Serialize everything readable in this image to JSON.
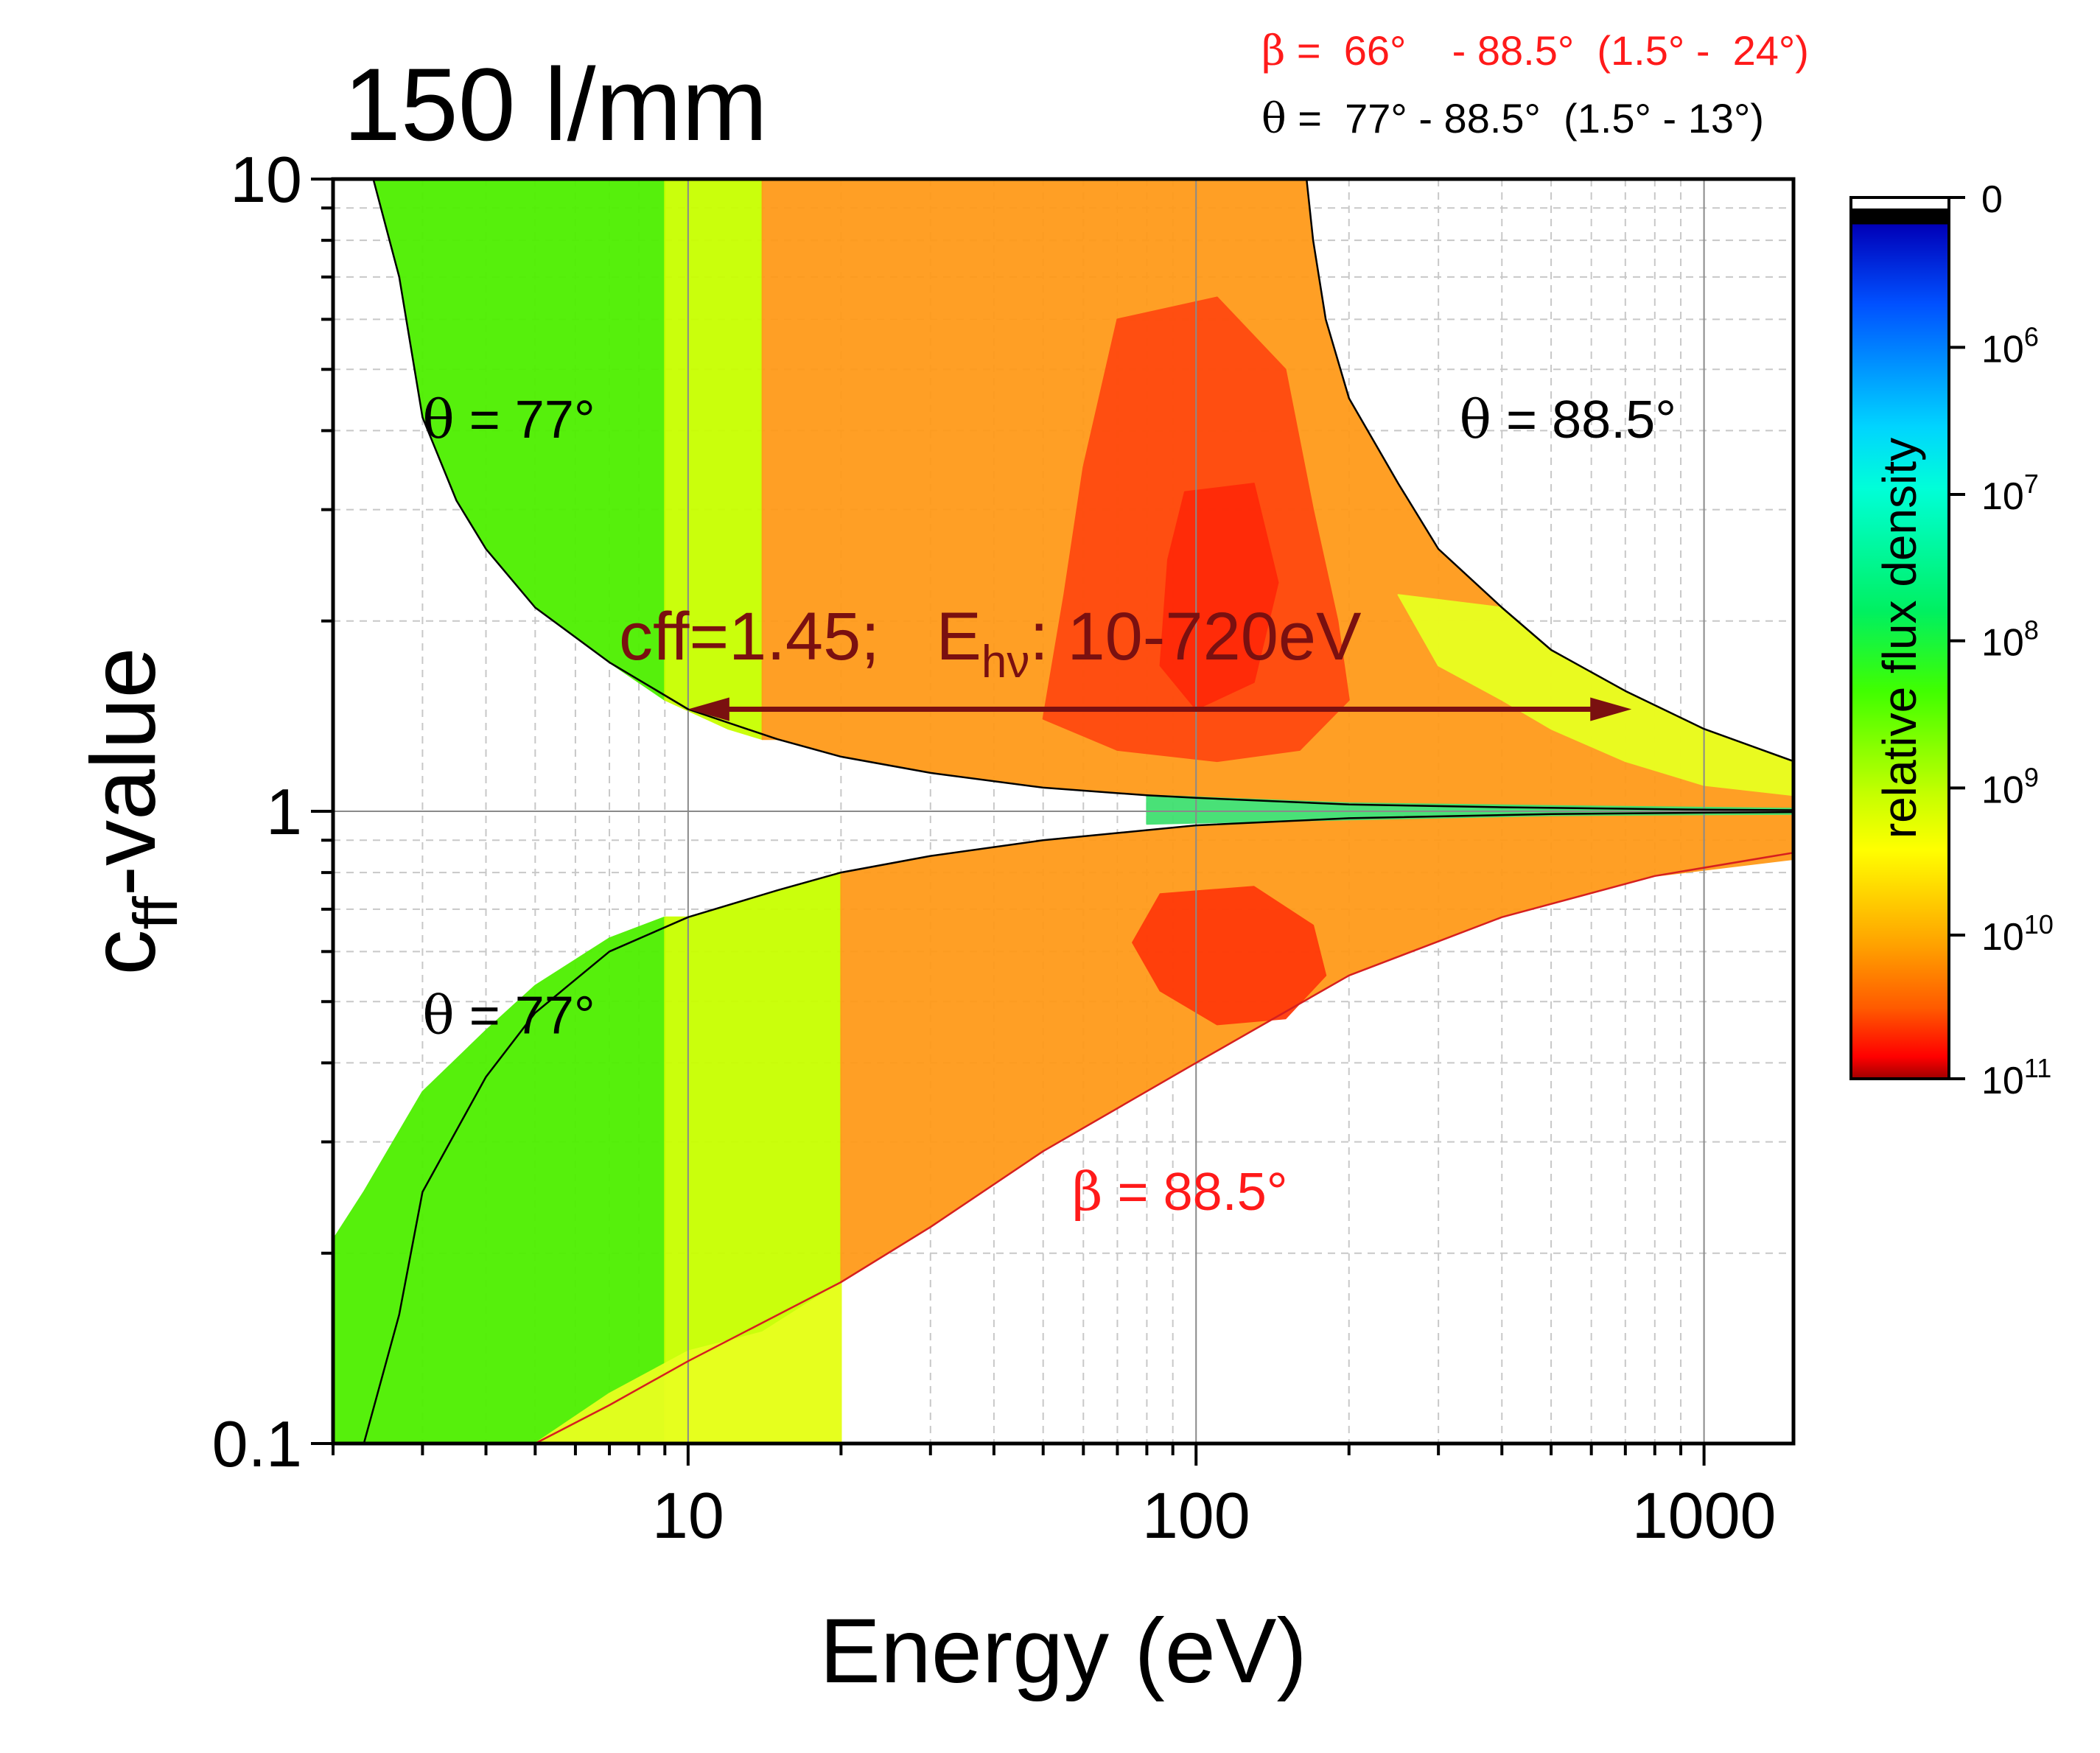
{
  "chart_data": {
    "type": "heatmap",
    "title": "150 l/mm",
    "xlabel": "Energy (eV)",
    "ylabel": {
      "main": "c",
      "sub": "ff",
      "suffix": "-value"
    },
    "x_scale": "log",
    "y_scale": "log",
    "xlim": [
      2,
      1500
    ],
    "ylim": [
      0.1,
      10
    ],
    "x_ticks": [
      10,
      100,
      1000
    ],
    "x_tick_labels": [
      "10",
      "100",
      "1000"
    ],
    "y_ticks": [
      0.1,
      1,
      10
    ],
    "y_tick_labels": [
      "0.1",
      "1",
      "10"
    ],
    "grid": true,
    "legend_text": {
      "beta": {
        "symbol": "β",
        "text": " =  66°    - 88.5°  (1.5° -  24°)",
        "color": "#ff1a1a"
      },
      "theta": {
        "symbol": "θ",
        "text": " =  77° - 88.5°  (1.5° - 13°)",
        "color": "#000000"
      }
    },
    "annotations": [
      {
        "id": "theta77-upper",
        "symbol": "θ",
        "text": " =  77°",
        "at": [
          3.0,
          3.9
        ],
        "color": "#000000"
      },
      {
        "id": "theta885-upper",
        "symbol": "θ",
        "text": " =  88.5°",
        "at": [
          330,
          3.9
        ],
        "color": "#000000"
      },
      {
        "id": "theta77-lower",
        "symbol": "θ",
        "text": " =  77°",
        "at": [
          3.0,
          0.445
        ],
        "color": "#000000"
      },
      {
        "id": "beta885",
        "symbol": "β",
        "text": " =  88.5°",
        "at": [
          57,
          0.234
        ],
        "color": "#ff1a1a"
      }
    ],
    "cff_marker": {
      "text": "cff=1.45;   E",
      "sub": "hν",
      "suffix": ": 10-720eV",
      "cff": 1.45,
      "energy_range": [
        10,
        720
      ],
      "color": "#7a1010"
    },
    "boundaries": [
      {
        "name": "theta-77-upper",
        "color": "#000000",
        "points": [
          [
            2.4,
            10
          ],
          [
            2.7,
            7
          ],
          [
            3,
            4.2
          ],
          [
            3.5,
            3.1
          ],
          [
            4,
            2.6
          ],
          [
            5,
            2.1
          ],
          [
            7,
            1.72
          ],
          [
            10,
            1.45
          ],
          [
            15,
            1.3
          ],
          [
            20,
            1.22
          ],
          [
            30,
            1.15
          ],
          [
            50,
            1.09
          ],
          [
            80,
            1.06
          ],
          [
            100,
            1.05
          ],
          [
            200,
            1.025
          ],
          [
            400,
            1.015
          ],
          [
            1000,
            1.006
          ],
          [
            1500,
            1.004
          ]
        ]
      },
      {
        "name": "theta-88.5-upper",
        "color": "#000000",
        "points": [
          [
            165,
            10
          ],
          [
            170,
            8
          ],
          [
            180,
            6
          ],
          [
            200,
            4.5
          ],
          [
            250,
            3.3
          ],
          [
            300,
            2.6
          ],
          [
            400,
            2.1
          ],
          [
            500,
            1.8
          ],
          [
            700,
            1.55
          ],
          [
            1000,
            1.35
          ],
          [
            1500,
            1.2
          ]
        ]
      },
      {
        "name": "theta-77-lower",
        "color": "#000000",
        "points": [
          [
            2.3,
            0.1
          ],
          [
            2.7,
            0.16
          ],
          [
            3,
            0.25
          ],
          [
            4,
            0.38
          ],
          [
            5,
            0.48
          ],
          [
            7,
            0.6
          ],
          [
            10,
            0.68
          ],
          [
            15,
            0.75
          ],
          [
            20,
            0.8
          ],
          [
            30,
            0.85
          ],
          [
            50,
            0.9
          ],
          [
            100,
            0.95
          ],
          [
            200,
            0.975
          ],
          [
            500,
            0.99
          ],
          [
            1000,
            0.995
          ],
          [
            1500,
            0.997
          ]
        ]
      },
      {
        "name": "beta-88.5-lower",
        "color": "#d61f1f",
        "points": [
          [
            5,
            0.1
          ],
          [
            7,
            0.115
          ],
          [
            10,
            0.135
          ],
          [
            20,
            0.18
          ],
          [
            30,
            0.22
          ],
          [
            50,
            0.29
          ],
          [
            100,
            0.4
          ],
          [
            200,
            0.55
          ],
          [
            400,
            0.68
          ],
          [
            800,
            0.79
          ],
          [
            1500,
            0.86
          ]
        ]
      }
    ],
    "colorbar": {
      "label": "relative flux density",
      "ticks": [
        {
          "value": "0",
          "frac": 0.0
        },
        {
          "value": "10^6",
          "base": "10",
          "exp": "6",
          "frac": 0.17
        },
        {
          "value": "10^7",
          "base": "10",
          "exp": "7",
          "frac": 0.337
        },
        {
          "value": "10^8",
          "base": "10",
          "exp": "8",
          "frac": 0.503
        },
        {
          "value": "10^9",
          "base": "10",
          "exp": "9",
          "frac": 0.67
        },
        {
          "value": "10^10",
          "base": "10",
          "exp": "10",
          "frac": 0.837
        },
        {
          "value": "10^11",
          "base": "10",
          "exp": "11",
          "frac": 1.0
        }
      ],
      "stops": [
        {
          "frac": 0.0,
          "color": "#ffffff"
        },
        {
          "frac": 0.012,
          "color": "#ffffff"
        },
        {
          "frac": 0.013,
          "color": "#000000"
        },
        {
          "frac": 0.03,
          "color": "#000000"
        },
        {
          "frac": 0.031,
          "color": "#0000b8"
        },
        {
          "frac": 0.12,
          "color": "#0050ff"
        },
        {
          "frac": 0.26,
          "color": "#00d4ff"
        },
        {
          "frac": 0.33,
          "color": "#00ffd8"
        },
        {
          "frac": 0.47,
          "color": "#00f060"
        },
        {
          "frac": 0.56,
          "color": "#40ff00"
        },
        {
          "frac": 0.68,
          "color": "#c8ff00"
        },
        {
          "frac": 0.74,
          "color": "#ffff00"
        },
        {
          "frac": 0.85,
          "color": "#ffa000"
        },
        {
          "frac": 0.92,
          "color": "#ff5a00"
        },
        {
          "frac": 0.975,
          "color": "#ff0000"
        },
        {
          "frac": 1.0,
          "color": "#a00000"
        }
      ]
    },
    "flux_regions": [
      {
        "name": "upper-green",
        "color": "#4ef000",
        "points": [
          [
            2,
            10
          ],
          [
            2.4,
            10
          ],
          [
            2.7,
            7
          ],
          [
            3,
            4.2
          ],
          [
            3.5,
            3.1
          ],
          [
            4,
            2.6
          ],
          [
            5,
            2.1
          ],
          [
            7,
            1.72
          ],
          [
            9,
            1.5
          ],
          [
            9,
            10
          ]
        ]
      },
      {
        "name": "upper-yellow",
        "color": "#c8ff00",
        "points": [
          [
            9,
            10
          ],
          [
            9,
            1.5
          ],
          [
            12,
            1.35
          ],
          [
            14,
            1.3
          ],
          [
            14,
            10
          ]
        ]
      },
      {
        "name": "upper-orange",
        "color": "#ff9a1a",
        "points": [
          [
            14,
            10
          ],
          [
            165,
            10
          ],
          [
            170,
            8
          ],
          [
            180,
            6
          ],
          [
            200,
            4.5
          ],
          [
            250,
            3.3
          ],
          [
            300,
            2.6
          ],
          [
            400,
            2.1
          ],
          [
            500,
            1.8
          ],
          [
            700,
            1.55
          ],
          [
            1000,
            1.35
          ],
          [
            1500,
            1.2
          ],
          [
            1500,
            1.004
          ],
          [
            1000,
            1.006
          ],
          [
            400,
            1.015
          ],
          [
            200,
            1.025
          ],
          [
            100,
            1.05
          ],
          [
            80,
            1.06
          ],
          [
            50,
            1.09
          ],
          [
            30,
            1.15
          ],
          [
            20,
            1.22
          ],
          [
            15,
            1.3
          ],
          [
            14,
            1.3
          ]
        ]
      },
      {
        "name": "upper-red-core",
        "color": "#ff4a10",
        "points": [
          [
            70,
            6
          ],
          [
            110,
            6.5
          ],
          [
            150,
            5
          ],
          [
            170,
            3
          ],
          [
            190,
            2
          ],
          [
            200,
            1.5
          ],
          [
            160,
            1.25
          ],
          [
            110,
            1.2
          ],
          [
            70,
            1.25
          ],
          [
            50,
            1.4
          ],
          [
            55,
            2.2
          ],
          [
            60,
            3.5
          ]
        ]
      },
      {
        "name": "upper-hot",
        "color": "#ff2a08",
        "points": [
          [
            95,
            3.2
          ],
          [
            130,
            3.3
          ],
          [
            145,
            2.3
          ],
          [
            130,
            1.6
          ],
          [
            100,
            1.45
          ],
          [
            85,
            1.7
          ],
          [
            88,
            2.5
          ]
        ]
      },
      {
        "name": "upper-edge-yellow",
        "color": "#e8ff20",
        "points": [
          [
            400,
            2.1
          ],
          [
            500,
            1.8
          ],
          [
            700,
            1.55
          ],
          [
            1000,
            1.35
          ],
          [
            1500,
            1.2
          ],
          [
            1500,
            1.06
          ],
          [
            1000,
            1.1
          ],
          [
            700,
            1.2
          ],
          [
            500,
            1.35
          ],
          [
            400,
            1.5
          ],
          [
            300,
            1.7
          ],
          [
            250,
            2.2
          ]
        ]
      },
      {
        "name": "lower-green",
        "color": "#4ef000",
        "points": [
          [
            2,
            0.21
          ],
          [
            2.3,
            0.25
          ],
          [
            3,
            0.36
          ],
          [
            4,
            0.45
          ],
          [
            5,
            0.53
          ],
          [
            7,
            0.63
          ],
          [
            9,
            0.68
          ],
          [
            9,
            0.1
          ],
          [
            2.3,
            0.1
          ],
          [
            2,
            0.1
          ]
        ]
      },
      {
        "name": "lower-yellow",
        "color": "#c8ff00",
        "points": [
          [
            9,
            0.68
          ],
          [
            10,
            0.68
          ],
          [
            15,
            0.75
          ],
          [
            20,
            0.8
          ],
          [
            20,
            0.1
          ],
          [
            9,
            0.1
          ]
        ]
      },
      {
        "name": "lower-orange",
        "color": "#ff9a1a",
        "points": [
          [
            20,
            0.8
          ],
          [
            30,
            0.85
          ],
          [
            50,
            0.9
          ],
          [
            100,
            0.95
          ],
          [
            200,
            0.975
          ],
          [
            500,
            0.99
          ],
          [
            1000,
            0.995
          ],
          [
            1500,
            0.997
          ],
          [
            1500,
            0.84
          ],
          [
            800,
            0.79
          ],
          [
            400,
            0.68
          ],
          [
            200,
            0.55
          ],
          [
            100,
            0.4
          ],
          [
            50,
            0.29
          ],
          [
            30,
            0.22
          ],
          [
            20,
            0.18
          ]
        ]
      },
      {
        "name": "lower-red-core",
        "color": "#ff3a0a",
        "points": [
          [
            85,
            0.74
          ],
          [
            130,
            0.76
          ],
          [
            170,
            0.66
          ],
          [
            180,
            0.55
          ],
          [
            150,
            0.47
          ],
          [
            110,
            0.46
          ],
          [
            85,
            0.52
          ],
          [
            75,
            0.62
          ]
        ]
      },
      {
        "name": "lower-left-yellow",
        "color": "#e8ff20",
        "points": [
          [
            9,
            0.1
          ],
          [
            20,
            0.1
          ],
          [
            20,
            0.18
          ],
          [
            14,
            0.15
          ],
          [
            10,
            0.14
          ],
          [
            7,
            0.12
          ],
          [
            5,
            0.1
          ]
        ]
      },
      {
        "name": "center-band",
        "color": "#40e070",
        "points": [
          [
            80,
            1.06
          ],
          [
            200,
            1.03
          ],
          [
            500,
            1.02
          ],
          [
            1500,
            1.01
          ],
          [
            1500,
            0.99
          ],
          [
            500,
            0.985
          ],
          [
            200,
            0.97
          ],
          [
            80,
            0.955
          ]
        ]
      }
    ]
  }
}
